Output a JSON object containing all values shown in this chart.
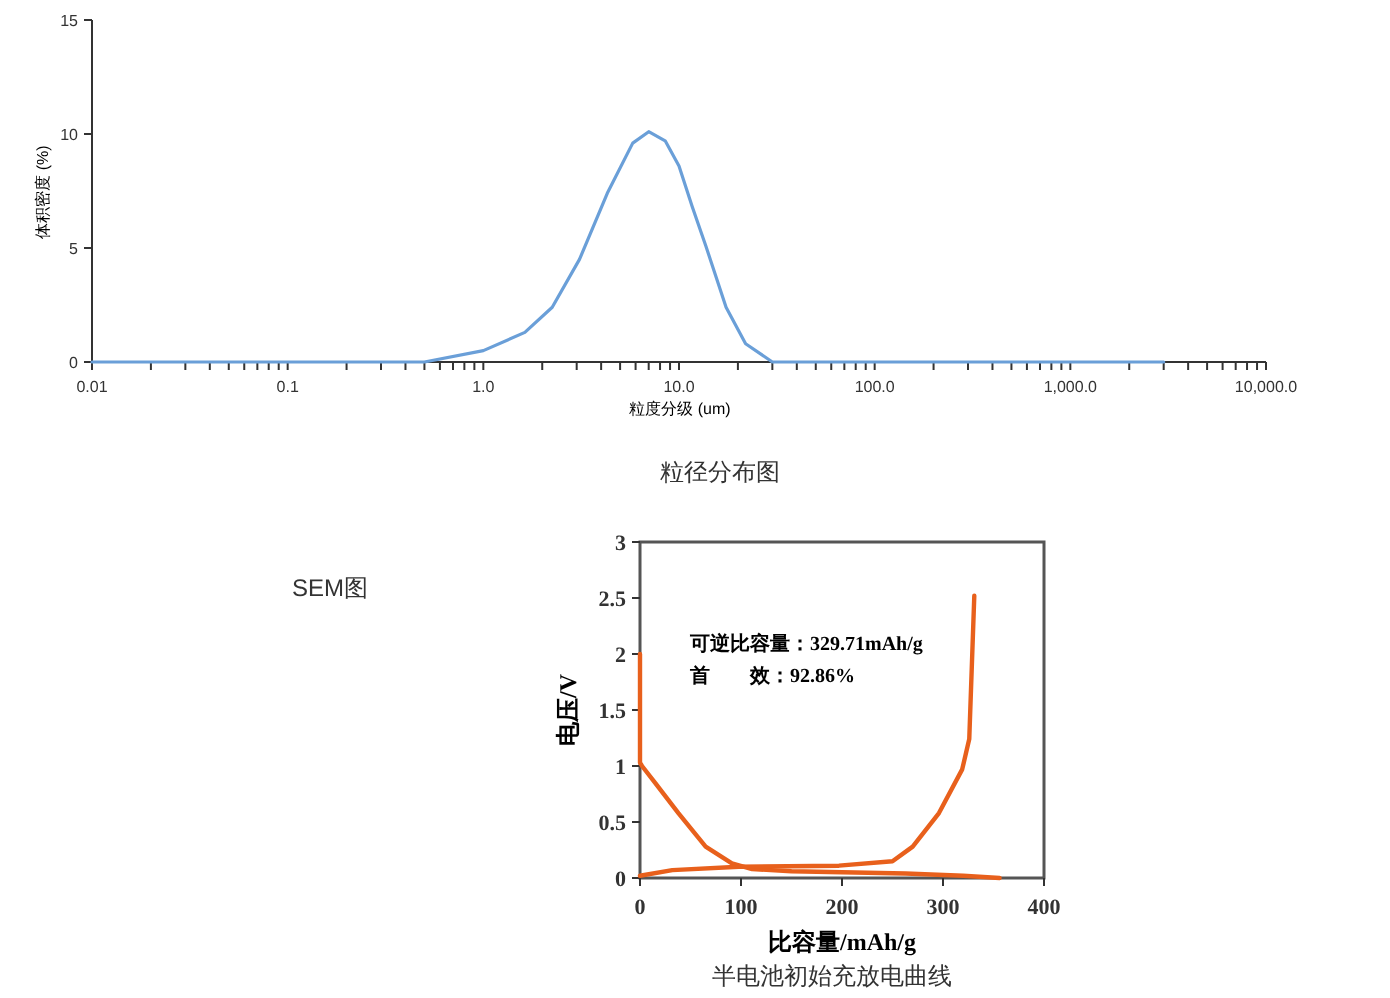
{
  "chart_data": [
    {
      "type": "line",
      "title": "粒径分布图",
      "xlabel": "粒度分级 (um)",
      "ylabel": "体积密度 (%)",
      "log": "x",
      "xlim": [
        0.01,
        10000
      ],
      "xticks": [
        0.01,
        0.1,
        {
          "value": 1,
          "label": "1.0"
        },
        {
          "value": 10,
          "label": "10.0"
        },
        {
          "value": 100,
          "label": "100.0"
        },
        {
          "value": 1000,
          "label": "1,000.0"
        },
        {
          "value": 10000,
          "label": "10,000.0"
        }
      ],
      "ylim": [
        0,
        15
      ],
      "yticks": [
        0,
        5,
        10,
        15
      ],
      "series": [
        {
          "color": "#6a9fd8",
          "x": [
            0.01,
            0.1,
            0.5,
            1.0,
            1.63,
            2.25,
            3.1,
            4.3,
            5.8,
            7.0,
            8.5,
            10,
            11.7,
            13.7,
            17.4,
            21.9,
            30,
            100,
            1000,
            3000
          ],
          "values": [
            0,
            0,
            0,
            0.5,
            1.3,
            2.4,
            4.5,
            7.4,
            9.6,
            10.1,
            9.7,
            8.6,
            6.8,
            5.1,
            2.4,
            0.8,
            0,
            0,
            0,
            0
          ]
        }
      ]
    },
    {
      "type": "other",
      "title": "SEM图"
    },
    {
      "type": "line",
      "title": "半电池初始充放电曲线",
      "xlabel": "比容量/mAh/g",
      "ylabel": "电压/V",
      "xlim": [
        0,
        400
      ],
      "xticks": [
        0,
        100,
        200,
        300,
        400
      ],
      "ylim": [
        0,
        3
      ],
      "yticks": [
        0,
        0.5,
        1,
        1.5,
        2,
        2.5,
        3
      ],
      "annotations": [
        "可逆比容量：329.71mAh/g",
        "首　　效：92.86%"
      ],
      "series": [
        {
          "color": "#e8601c",
          "x": [
            0,
            0,
            2,
            15,
            38,
            65,
            91,
            111,
            150,
            263,
            320,
            356
          ],
          "values": [
            2.0,
            1.03,
            1.0,
            0.85,
            0.58,
            0.28,
            0.13,
            0.08,
            0.06,
            0.04,
            0.02,
            0
          ]
        },
        {
          "color": "#e8601c",
          "x": [
            0,
            32,
            98,
            197,
            250,
            270,
            296,
            319,
            326,
            331
          ],
          "values": [
            0.02,
            0.07,
            0.1,
            0.11,
            0.15,
            0.28,
            0.58,
            0.97,
            1.24,
            2.52
          ]
        }
      ]
    }
  ]
}
